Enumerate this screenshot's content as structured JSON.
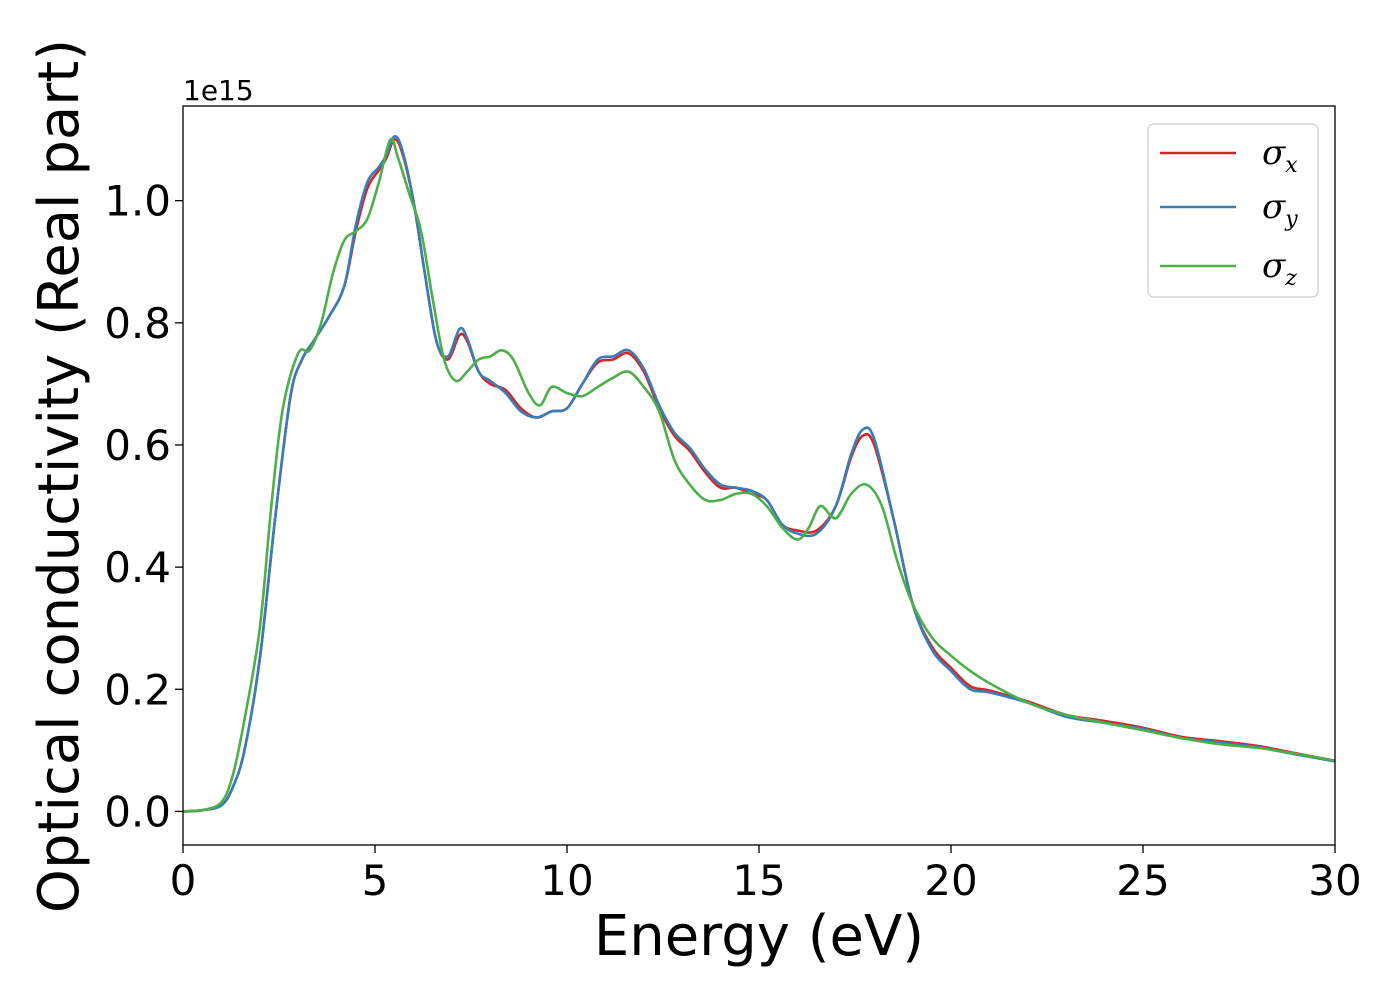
{
  "chart_data": {
    "type": "line",
    "xlabel": "Energy (eV)",
    "ylabel": "Optical conductivity (Real part)",
    "y_offset_text": "1e15",
    "xlim": [
      0,
      30
    ],
    "ylim": [
      -0.055,
      1.155
    ],
    "x_ticks": [
      0,
      5,
      10,
      15,
      20,
      25,
      30
    ],
    "x_tick_labels": [
      "0",
      "5",
      "10",
      "15",
      "20",
      "25",
      "30"
    ],
    "y_ticks": [
      0.0,
      0.2,
      0.4,
      0.6,
      0.8,
      1.0
    ],
    "y_tick_labels": [
      "0.0",
      "0.2",
      "0.4",
      "0.6",
      "0.8",
      "1.0"
    ],
    "grid": false,
    "legend_position": "top-right",
    "series": [
      {
        "name": "σ",
        "subscript": "x",
        "color": "#d62728",
        "points": [
          [
            0,
            0
          ],
          [
            0.5,
            0.002
          ],
          [
            1.0,
            0.01
          ],
          [
            1.3,
            0.04
          ],
          [
            1.6,
            0.1
          ],
          [
            2.0,
            0.25
          ],
          [
            2.4,
            0.48
          ],
          [
            2.8,
            0.68
          ],
          [
            3.1,
            0.74
          ],
          [
            3.4,
            0.77
          ],
          [
            3.8,
            0.81
          ],
          [
            4.2,
            0.86
          ],
          [
            4.5,
            0.95
          ],
          [
            4.8,
            1.02
          ],
          [
            5.1,
            1.05
          ],
          [
            5.3,
            1.07
          ],
          [
            5.5,
            1.1
          ],
          [
            5.7,
            1.08
          ],
          [
            6.0,
            1.0
          ],
          [
            6.3,
            0.88
          ],
          [
            6.6,
            0.77
          ],
          [
            6.9,
            0.74
          ],
          [
            7.2,
            0.78
          ],
          [
            7.4,
            0.77
          ],
          [
            7.7,
            0.72
          ],
          [
            8.0,
            0.7
          ],
          [
            8.4,
            0.69
          ],
          [
            8.8,
            0.66
          ],
          [
            9.2,
            0.645
          ],
          [
            9.6,
            0.655
          ],
          [
            10.0,
            0.66
          ],
          [
            10.4,
            0.7
          ],
          [
            10.8,
            0.735
          ],
          [
            11.2,
            0.74
          ],
          [
            11.6,
            0.75
          ],
          [
            12.0,
            0.72
          ],
          [
            12.4,
            0.66
          ],
          [
            12.8,
            0.615
          ],
          [
            13.2,
            0.59
          ],
          [
            13.6,
            0.555
          ],
          [
            14.0,
            0.53
          ],
          [
            14.4,
            0.53
          ],
          [
            14.8,
            0.52
          ],
          [
            15.2,
            0.51
          ],
          [
            15.6,
            0.47
          ],
          [
            16.0,
            0.46
          ],
          [
            16.5,
            0.46
          ],
          [
            17.0,
            0.5
          ],
          [
            17.4,
            0.58
          ],
          [
            17.7,
            0.615
          ],
          [
            18.0,
            0.6
          ],
          [
            18.5,
            0.48
          ],
          [
            19.0,
            0.34
          ],
          [
            19.5,
            0.27
          ],
          [
            20.0,
            0.235
          ],
          [
            20.5,
            0.205
          ],
          [
            21.0,
            0.198
          ],
          [
            22.0,
            0.18
          ],
          [
            23.0,
            0.158
          ],
          [
            24.0,
            0.148
          ],
          [
            25.0,
            0.137
          ],
          [
            26.0,
            0.122
          ],
          [
            27.0,
            0.115
          ],
          [
            28.0,
            0.107
          ],
          [
            29.0,
            0.095
          ],
          [
            30.0,
            0.083
          ]
        ]
      },
      {
        "name": "σ",
        "subscript": "y",
        "color": "#377eb8",
        "points": [
          [
            0,
            0
          ],
          [
            0.5,
            0.002
          ],
          [
            1.0,
            0.01
          ],
          [
            1.3,
            0.04
          ],
          [
            1.6,
            0.1
          ],
          [
            2.0,
            0.25
          ],
          [
            2.4,
            0.48
          ],
          [
            2.8,
            0.68
          ],
          [
            3.1,
            0.74
          ],
          [
            3.4,
            0.77
          ],
          [
            3.8,
            0.81
          ],
          [
            4.2,
            0.86
          ],
          [
            4.5,
            0.96
          ],
          [
            4.8,
            1.03
          ],
          [
            5.1,
            1.055
          ],
          [
            5.3,
            1.075
          ],
          [
            5.5,
            1.105
          ],
          [
            5.7,
            1.085
          ],
          [
            6.0,
            1.0
          ],
          [
            6.3,
            0.88
          ],
          [
            6.6,
            0.77
          ],
          [
            6.9,
            0.745
          ],
          [
            7.2,
            0.79
          ],
          [
            7.4,
            0.775
          ],
          [
            7.7,
            0.72
          ],
          [
            8.0,
            0.705
          ],
          [
            8.4,
            0.685
          ],
          [
            8.8,
            0.655
          ],
          [
            9.2,
            0.645
          ],
          [
            9.6,
            0.655
          ],
          [
            10.0,
            0.66
          ],
          [
            10.4,
            0.7
          ],
          [
            10.8,
            0.74
          ],
          [
            11.2,
            0.745
          ],
          [
            11.6,
            0.755
          ],
          [
            12.0,
            0.725
          ],
          [
            12.4,
            0.665
          ],
          [
            12.8,
            0.62
          ],
          [
            13.2,
            0.595
          ],
          [
            13.6,
            0.56
          ],
          [
            14.0,
            0.535
          ],
          [
            14.4,
            0.53
          ],
          [
            14.8,
            0.525
          ],
          [
            15.2,
            0.51
          ],
          [
            15.6,
            0.47
          ],
          [
            16.0,
            0.455
          ],
          [
            16.5,
            0.455
          ],
          [
            17.0,
            0.5
          ],
          [
            17.4,
            0.585
          ],
          [
            17.7,
            0.625
          ],
          [
            18.0,
            0.61
          ],
          [
            18.5,
            0.48
          ],
          [
            19.0,
            0.34
          ],
          [
            19.5,
            0.265
          ],
          [
            20.0,
            0.23
          ],
          [
            20.5,
            0.2
          ],
          [
            21.0,
            0.195
          ],
          [
            22.0,
            0.178
          ],
          [
            23.0,
            0.155
          ],
          [
            24.0,
            0.145
          ],
          [
            25.0,
            0.135
          ],
          [
            26.0,
            0.12
          ],
          [
            27.0,
            0.113
          ],
          [
            28.0,
            0.105
          ],
          [
            29.0,
            0.093
          ],
          [
            30.0,
            0.082
          ]
        ]
      },
      {
        "name": "σ",
        "subscript": "z",
        "color": "#4daf4a",
        "points": [
          [
            0,
            0
          ],
          [
            0.5,
            0.002
          ],
          [
            1.0,
            0.015
          ],
          [
            1.3,
            0.06
          ],
          [
            1.6,
            0.15
          ],
          [
            2.0,
            0.3
          ],
          [
            2.3,
            0.5
          ],
          [
            2.6,
            0.66
          ],
          [
            3.0,
            0.75
          ],
          [
            3.3,
            0.755
          ],
          [
            3.6,
            0.8
          ],
          [
            3.9,
            0.88
          ],
          [
            4.2,
            0.935
          ],
          [
            4.5,
            0.95
          ],
          [
            4.8,
            0.97
          ],
          [
            5.1,
            1.03
          ],
          [
            5.4,
            1.1
          ],
          [
            5.6,
            1.07
          ],
          [
            5.9,
            1.01
          ],
          [
            6.2,
            0.95
          ],
          [
            6.5,
            0.84
          ],
          [
            6.8,
            0.74
          ],
          [
            7.1,
            0.705
          ],
          [
            7.4,
            0.72
          ],
          [
            7.7,
            0.74
          ],
          [
            8.0,
            0.745
          ],
          [
            8.3,
            0.755
          ],
          [
            8.6,
            0.74
          ],
          [
            9.0,
            0.685
          ],
          [
            9.3,
            0.665
          ],
          [
            9.6,
            0.695
          ],
          [
            10.0,
            0.685
          ],
          [
            10.4,
            0.68
          ],
          [
            10.8,
            0.695
          ],
          [
            11.2,
            0.71
          ],
          [
            11.6,
            0.72
          ],
          [
            12.0,
            0.695
          ],
          [
            12.4,
            0.655
          ],
          [
            12.8,
            0.575
          ],
          [
            13.2,
            0.535
          ],
          [
            13.6,
            0.51
          ],
          [
            14.0,
            0.51
          ],
          [
            14.4,
            0.52
          ],
          [
            14.8,
            0.52
          ],
          [
            15.2,
            0.5
          ],
          [
            15.6,
            0.465
          ],
          [
            16.0,
            0.445
          ],
          [
            16.3,
            0.465
          ],
          [
            16.6,
            0.5
          ],
          [
            17.0,
            0.48
          ],
          [
            17.4,
            0.52
          ],
          [
            17.8,
            0.535
          ],
          [
            18.2,
            0.5
          ],
          [
            18.6,
            0.41
          ],
          [
            19.0,
            0.34
          ],
          [
            19.5,
            0.285
          ],
          [
            20.0,
            0.255
          ],
          [
            20.5,
            0.23
          ],
          [
            21.0,
            0.21
          ],
          [
            22.0,
            0.178
          ],
          [
            23.0,
            0.158
          ],
          [
            24.0,
            0.145
          ],
          [
            25.0,
            0.133
          ],
          [
            26.0,
            0.12
          ],
          [
            27.0,
            0.11
          ],
          [
            28.0,
            0.104
          ],
          [
            29.0,
            0.094
          ],
          [
            30.0,
            0.083
          ]
        ]
      }
    ]
  }
}
